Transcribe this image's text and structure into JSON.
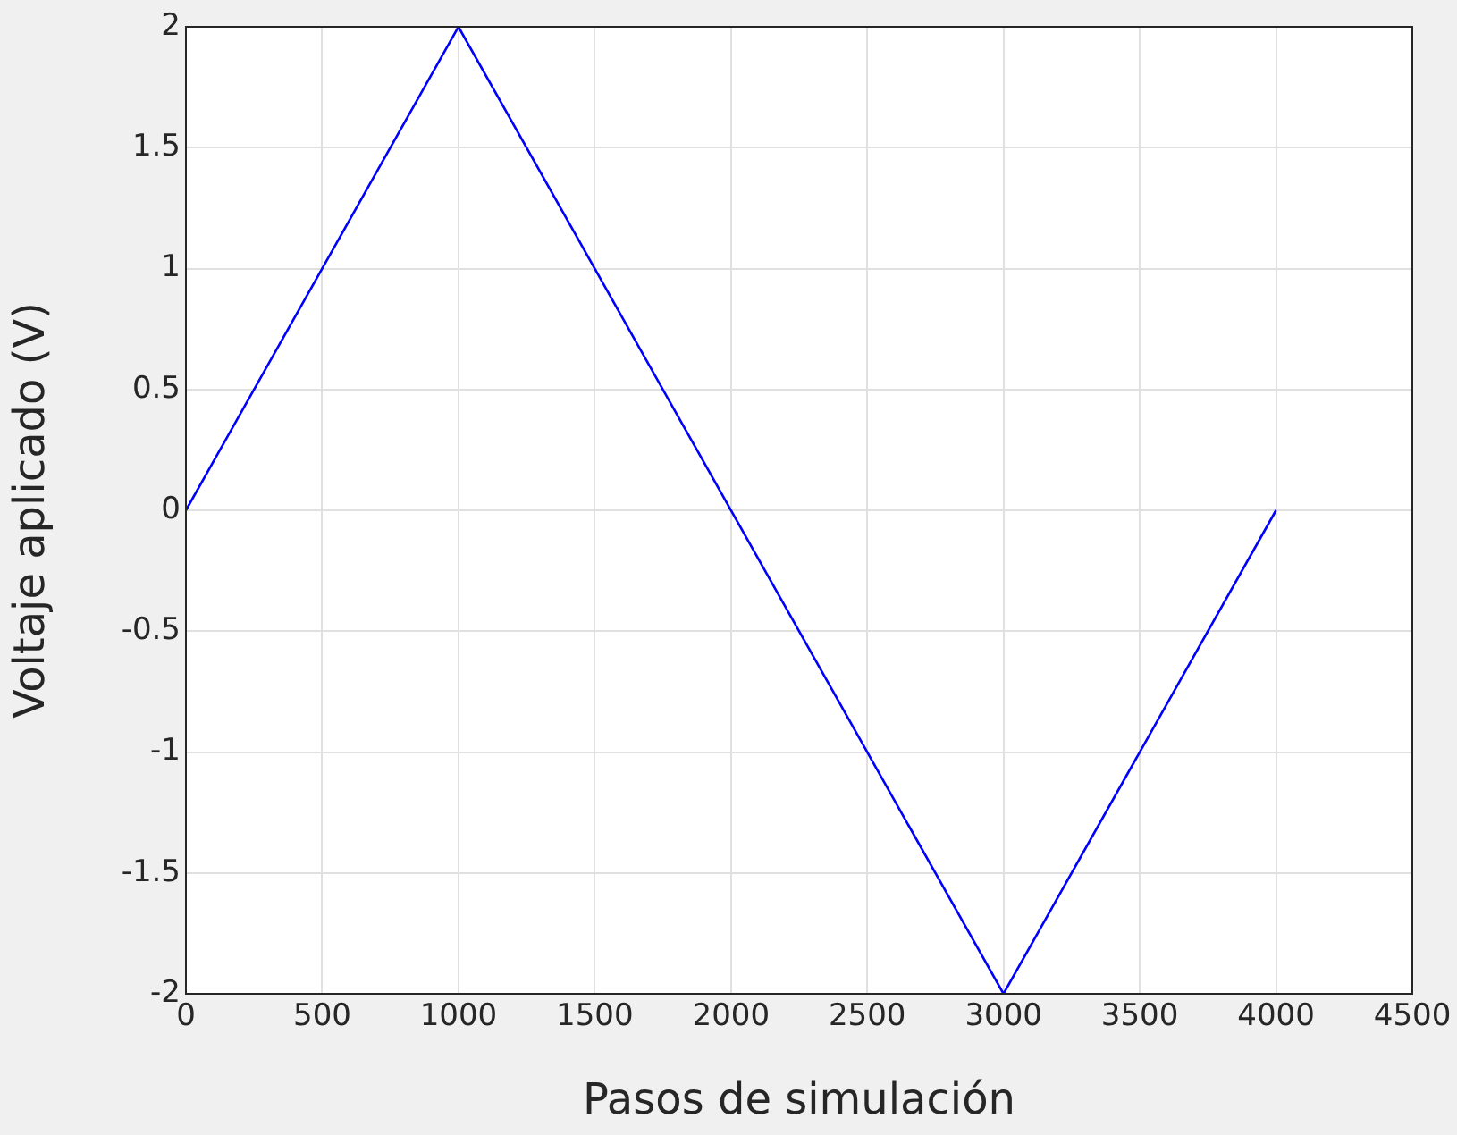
{
  "chart_data": {
    "type": "line",
    "xlabel": "Pasos de simulación",
    "ylabel": "Voltaje aplicado (V)",
    "x": [
      0,
      1000,
      3000,
      4000
    ],
    "series": [
      {
        "color": "#0000ff",
        "values": [
          0,
          2,
          -2,
          0
        ]
      }
    ],
    "xlim": [
      0,
      4500
    ],
    "xticks": [
      0,
      500,
      1000,
      1500,
      2000,
      2500,
      3000,
      3500,
      4000,
      4500
    ],
    "ylim": [
      -2,
      2
    ],
    "yticks": [
      -2,
      -1.5,
      -1,
      -0.5,
      0,
      0.5,
      1,
      1.5,
      2
    ],
    "grid": true,
    "legend": false,
    "marker": "none",
    "line_style": "solid"
  }
}
